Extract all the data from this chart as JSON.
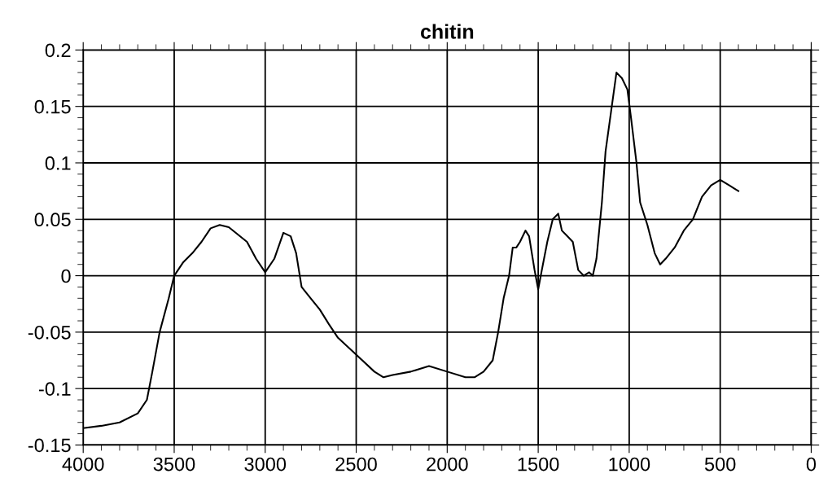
{
  "chart_data": {
    "type": "line",
    "title": "chitin",
    "x": [
      4000,
      3900,
      3800,
      3700,
      3650,
      3620,
      3580,
      3530,
      3500,
      3450,
      3400,
      3350,
      3300,
      3250,
      3200,
      3100,
      3050,
      3000,
      2950,
      2900,
      2860,
      2830,
      2800,
      2750,
      2700,
      2650,
      2600,
      2500,
      2400,
      2350,
      2300,
      2200,
      2100,
      2000,
      1900,
      1850,
      1800,
      1750,
      1720,
      1690,
      1660,
      1640,
      1620,
      1600,
      1570,
      1550,
      1520,
      1500,
      1480,
      1450,
      1420,
      1390,
      1370,
      1340,
      1310,
      1280,
      1250,
      1220,
      1200,
      1180,
      1150,
      1130,
      1100,
      1070,
      1040,
      1010,
      990,
      960,
      940,
      900,
      860,
      830,
      800,
      750,
      700,
      650,
      600,
      550,
      500,
      450,
      420,
      400
    ],
    "series": [
      {
        "color": "#000000",
        "values": [
          -0.135,
          -0.133,
          -0.13,
          -0.122,
          -0.11,
          -0.085,
          -0.05,
          -0.02,
          0.0,
          0.012,
          0.02,
          0.03,
          0.042,
          0.045,
          0.043,
          0.03,
          0.015,
          0.003,
          0.015,
          0.038,
          0.035,
          0.02,
          -0.01,
          -0.02,
          -0.03,
          -0.043,
          -0.055,
          -0.07,
          -0.085,
          -0.09,
          -0.088,
          -0.085,
          -0.08,
          -0.085,
          -0.09,
          -0.09,
          -0.085,
          -0.075,
          -0.05,
          -0.02,
          0.0,
          0.025,
          0.025,
          0.03,
          0.04,
          0.035,
          0.005,
          -0.012,
          0.005,
          0.03,
          0.05,
          0.055,
          0.04,
          0.035,
          0.03,
          0.005,
          0.0,
          0.003,
          0.0,
          0.015,
          0.065,
          0.11,
          0.145,
          0.18,
          0.175,
          0.165,
          0.14,
          0.1,
          0.065,
          0.045,
          0.02,
          0.01,
          0.015,
          0.025,
          0.04,
          0.05,
          0.07,
          0.08,
          0.085,
          0.08,
          0.077,
          0.075
        ]
      }
    ],
    "xlim": [
      4000,
      0
    ],
    "xticks": [
      4000,
      3500,
      3000,
      2500,
      2000,
      1500,
      1000,
      500,
      0
    ],
    "ylim": [
      -0.15,
      0.2
    ],
    "yticks": [
      -0.15,
      -0.1,
      -0.05,
      0,
      0.05,
      0.1,
      0.15,
      0.2
    ],
    "grid": true,
    "marker": "none",
    "line_style": "solid"
  }
}
